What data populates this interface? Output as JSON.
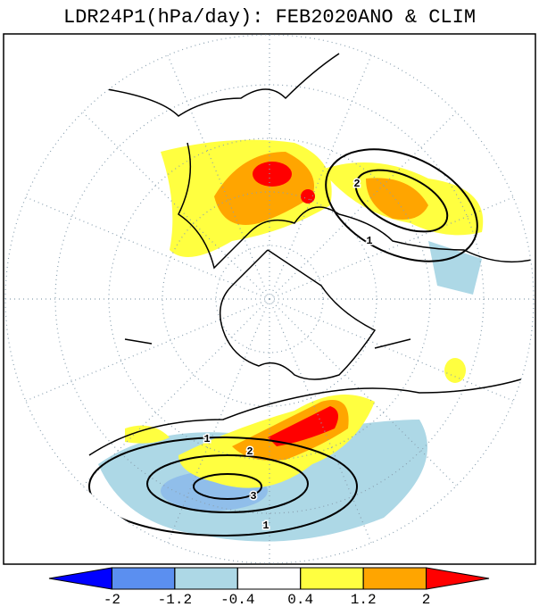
{
  "title": "LDR24P1(hPa/day): FEB2020ANO & CLIM",
  "colorbar": {
    "colors": [
      "#0000ff",
      "#5b8ff0",
      "#add8e6",
      "#ffffff",
      "#ffff40",
      "#ffa500",
      "#ff0000"
    ],
    "ticks": [
      -2,
      -1.2,
      -0.4,
      0.4,
      1.2,
      2
    ]
  },
  "contour_labels": [
    "2",
    "1",
    "1",
    "2",
    "3",
    "1"
  ]
}
